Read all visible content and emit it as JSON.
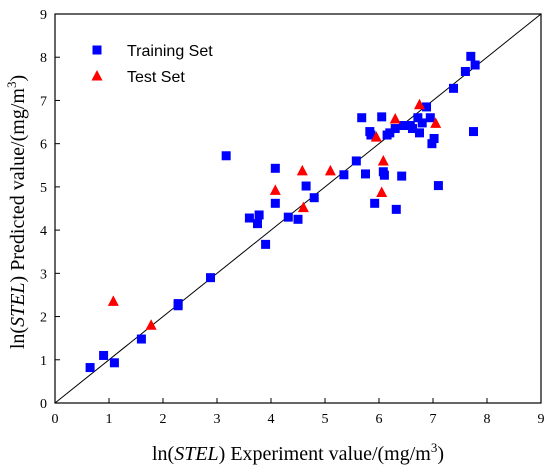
{
  "chart_data": {
    "type": "scatter",
    "xlabel": {
      "prefix": "ln(",
      "italic": "STEL",
      "suffix": ") Experiment value/(mg/m",
      "sup": "3",
      "end": ")"
    },
    "ylabel": {
      "prefix": "ln(",
      "italic": "STEL",
      "suffix": ") Predicted value/(mg/m",
      "sup": "3",
      "end": ")"
    },
    "xlim": [
      0,
      9
    ],
    "ylim": [
      0,
      9
    ],
    "xticks": [
      0,
      1,
      2,
      3,
      4,
      5,
      6,
      7,
      8,
      9
    ],
    "yticks": [
      0,
      1,
      2,
      3,
      4,
      5,
      6,
      7,
      8,
      9
    ],
    "grid": false,
    "legend_position": "top-left",
    "reference_line": "y = x",
    "colors": {
      "training": "#0000ff",
      "test": "#ff0000",
      "line": "#000000"
    },
    "series": [
      {
        "name": "Training Set",
        "marker": "square",
        "points": [
          [
            0.65,
            0.82
          ],
          [
            0.9,
            1.1
          ],
          [
            1.1,
            0.93
          ],
          [
            1.6,
            1.48
          ],
          [
            2.28,
            2.25
          ],
          [
            2.28,
            2.3
          ],
          [
            2.88,
            2.9
          ],
          [
            3.17,
            5.72
          ],
          [
            3.6,
            4.28
          ],
          [
            3.75,
            4.15
          ],
          [
            3.78,
            4.35
          ],
          [
            3.9,
            3.67
          ],
          [
            4.08,
            4.62
          ],
          [
            4.08,
            5.43
          ],
          [
            4.32,
            4.3
          ],
          [
            4.5,
            4.25
          ],
          [
            4.65,
            5.02
          ],
          [
            4.8,
            4.75
          ],
          [
            5.35,
            5.28
          ],
          [
            5.58,
            5.6
          ],
          [
            5.68,
            6.6
          ],
          [
            5.75,
            5.3
          ],
          [
            5.83,
            6.28
          ],
          [
            5.85,
            6.2
          ],
          [
            5.92,
            4.62
          ],
          [
            6.05,
            6.62
          ],
          [
            6.08,
            5.35
          ],
          [
            6.1,
            5.27
          ],
          [
            6.15,
            6.2
          ],
          [
            6.2,
            6.25
          ],
          [
            6.3,
            6.35
          ],
          [
            6.32,
            4.48
          ],
          [
            6.42,
            5.25
          ],
          [
            6.45,
            6.42
          ],
          [
            6.58,
            6.42
          ],
          [
            6.62,
            6.35
          ],
          [
            6.72,
            6.6
          ],
          [
            6.75,
            6.25
          ],
          [
            6.8,
            6.48
          ],
          [
            6.88,
            6.85
          ],
          [
            6.95,
            6.6
          ],
          [
            6.98,
            6.0
          ],
          [
            7.02,
            6.12
          ],
          [
            7.1,
            5.03
          ],
          [
            7.38,
            7.28
          ],
          [
            7.6,
            7.67
          ],
          [
            7.7,
            8.02
          ],
          [
            7.75,
            6.28
          ],
          [
            7.78,
            7.82
          ]
        ]
      },
      {
        "name": "Test Set",
        "marker": "triangle",
        "points": [
          [
            1.08,
            2.35
          ],
          [
            1.78,
            1.8
          ],
          [
            4.08,
            4.92
          ],
          [
            4.58,
            5.37
          ],
          [
            4.6,
            4.52
          ],
          [
            5.1,
            5.37
          ],
          [
            5.95,
            6.15
          ],
          [
            6.05,
            4.87
          ],
          [
            6.08,
            5.6
          ],
          [
            6.3,
            6.57
          ],
          [
            6.75,
            6.9
          ],
          [
            7.05,
            6.47
          ]
        ]
      }
    ]
  }
}
